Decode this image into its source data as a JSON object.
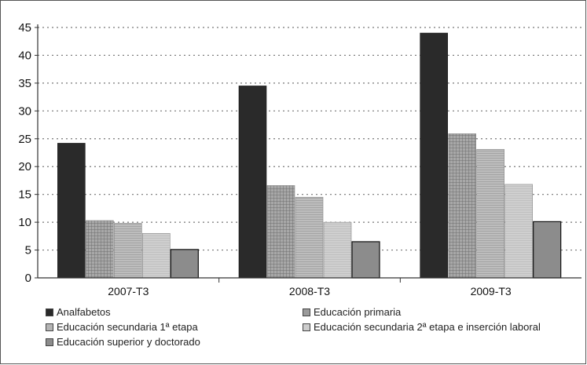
{
  "chart_data": {
    "type": "bar",
    "categories": [
      "2007-T3",
      "2008-T3",
      "2009-T3"
    ],
    "series": [
      {
        "name": "Analfabetos",
        "values": [
          24.2,
          34.5,
          44.0
        ],
        "color": "#2a2a2a"
      },
      {
        "name": "Educación primaria",
        "values": [
          10.3,
          16.6,
          25.9
        ],
        "color": "#9a9a9a"
      },
      {
        "name": "Educación secundaria 1ª etapa",
        "values": [
          9.8,
          14.5,
          23.1
        ],
        "color": "#b4b4b4"
      },
      {
        "name": "Educación secundaria 2ª etapa e inserción laboral",
        "values": [
          8.0,
          10.0,
          16.8
        ],
        "color": "#cccccc"
      },
      {
        "name": "Educación superior y doctorado",
        "values": [
          5.1,
          6.5,
          10.1
        ],
        "color": "#8c8c8c"
      }
    ],
    "y_ticks": [
      "0",
      "5",
      "10",
      "15",
      "20",
      "25",
      "30",
      "35",
      "40",
      "45"
    ],
    "ylim": [
      0,
      45
    ],
    "grid": true,
    "legend_position": "bottom"
  }
}
